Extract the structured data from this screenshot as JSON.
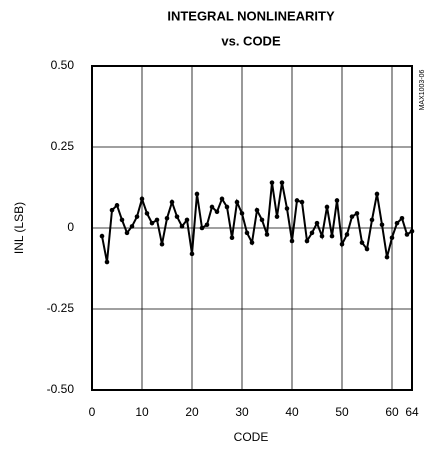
{
  "chart_data": {
    "type": "line",
    "title": "INTEGRAL NONLINEARITY",
    "subtitle": "vs. CODE",
    "x_label": "CODE",
    "y_label": "INL (LSB)",
    "note": "MAX1003-06",
    "grid": true,
    "marker": true,
    "xlim": [
      0,
      64
    ],
    "xticks": [
      0,
      10,
      20,
      30,
      40,
      50,
      60,
      64
    ],
    "ylim": [
      -0.5,
      0.5
    ],
    "yticks": [
      {
        "value": 0.5,
        "label": "0.50"
      },
      0.25,
      0,
      -0.25,
      {
        "value": -0.5,
        "label": "-0.50"
      }
    ],
    "x": [
      2,
      3,
      4,
      5,
      6,
      7,
      8,
      9,
      10,
      11,
      12,
      13,
      14,
      15,
      16,
      17,
      18,
      19,
      20,
      21,
      22,
      23,
      24,
      25,
      26,
      27,
      28,
      29,
      30,
      31,
      32,
      33,
      34,
      35,
      36,
      37,
      38,
      39,
      40,
      41,
      42,
      43,
      44,
      45,
      46,
      47,
      48,
      49,
      50,
      51,
      52,
      53,
      54,
      55,
      56,
      57,
      58,
      59,
      60,
      61,
      62,
      63,
      64
    ],
    "series": [
      {
        "color": "#000000",
        "values": [
          -0.025,
          -0.105,
          0.055,
          0.07,
          0.025,
          -0.015,
          0.005,
          0.035,
          0.09,
          0.045,
          0.015,
          0.025,
          -0.05,
          0.03,
          0.08,
          0.035,
          0.005,
          0.025,
          -0.08,
          0.105,
          0,
          0.01,
          0.065,
          0.05,
          0.09,
          0.065,
          -0.03,
          0.08,
          0.045,
          -0.015,
          -0.045,
          0.055,
          0.025,
          -0.02,
          0.14,
          0.035,
          0.14,
          0.06,
          -0.04,
          0.085,
          0.08,
          -0.04,
          -0.015,
          0.015,
          -0.025,
          0.065,
          -0.025,
          0.085,
          -0.05,
          -0.02,
          0.035,
          0.045,
          -0.045,
          -0.065,
          0.025,
          0.105,
          0.01,
          -0.09,
          -0.03,
          0.015,
          0.03,
          -0.02,
          -0.01
        ]
      }
    ]
  }
}
